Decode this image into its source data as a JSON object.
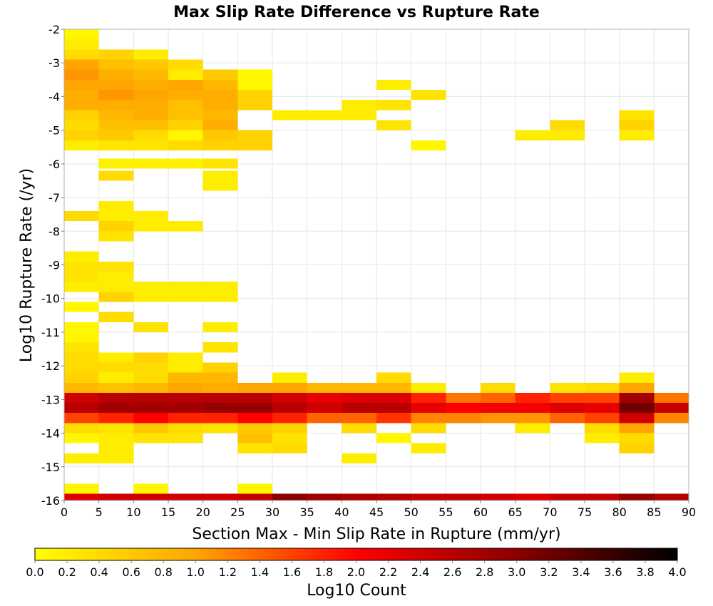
{
  "chart_data": {
    "type": "heatmap",
    "title": "Max Slip Rate Difference vs Rupture Rate",
    "xlabel": "Section Max - Min Slip Rate in Rupture (mm/yr)",
    "ylabel": "Log10 Rupture Rate (/yr)",
    "xlim": [
      0,
      90
    ],
    "ylim": [
      -16,
      -2
    ],
    "x_bin_width": 5,
    "y_bin_height": 0.3,
    "x_ticks": [
      "0",
      "5",
      "10",
      "15",
      "20",
      "25",
      "30",
      "35",
      "40",
      "45",
      "50",
      "55",
      "60",
      "65",
      "70",
      "75",
      "80",
      "85",
      "90"
    ],
    "y_ticks": [
      "-2",
      "-3",
      "-4",
      "-5",
      "-6",
      "-7",
      "-8",
      "-9",
      "-10",
      "-11",
      "-12",
      "-13",
      "-14",
      "-15",
      "-16"
    ],
    "grid": true,
    "colorbar": {
      "label": "Log10 Count",
      "min": 0.0,
      "max": 4.0,
      "ticks": [
        "0.0",
        "0.2",
        "0.4",
        "0.6",
        "0.8",
        "1.0",
        "1.2",
        "1.4",
        "1.6",
        "1.8",
        "2.0",
        "2.2",
        "2.4",
        "2.6",
        "2.8",
        "3.0",
        "3.2",
        "3.4",
        "3.6",
        "3.8",
        "4.0"
      ],
      "colors": [
        "#ffff00",
        "#ffa500",
        "#ff0000",
        "#8b0000",
        "#000000"
      ]
    },
    "cells": [
      [
        0,
        -2.15,
        0.1
      ],
      [
        0,
        -2.45,
        0.2
      ],
      [
        0,
        -2.75,
        0.4
      ],
      [
        0,
        -3.05,
        1.0
      ],
      [
        0,
        -3.35,
        1.1
      ],
      [
        0,
        -3.65,
        1.0
      ],
      [
        0,
        -3.95,
        0.9
      ],
      [
        0,
        -4.25,
        0.9
      ],
      [
        0,
        -4.55,
        0.5
      ],
      [
        0,
        -4.85,
        0.4
      ],
      [
        0,
        -5.15,
        0.5
      ],
      [
        0,
        -5.45,
        0.2
      ],
      [
        0,
        -7.55,
        0.4
      ],
      [
        0,
        -8.75,
        0.2
      ],
      [
        0,
        -9.05,
        0.3
      ],
      [
        0,
        -9.35,
        0.3
      ],
      [
        0,
        -9.65,
        0.2
      ],
      [
        0,
        -10.25,
        0.1
      ],
      [
        0,
        -10.85,
        0.1
      ],
      [
        0,
        -11.15,
        0.1
      ],
      [
        0,
        -11.45,
        0.3
      ],
      [
        0,
        -11.75,
        0.4
      ],
      [
        0,
        -12.05,
        0.4
      ],
      [
        0,
        -12.35,
        0.5
      ],
      [
        0,
        -12.65,
        0.8
      ],
      [
        0,
        -12.95,
        2.4
      ],
      [
        0,
        -13.25,
        2.6
      ],
      [
        0,
        -13.55,
        1.6
      ],
      [
        0,
        -13.85,
        0.4
      ],
      [
        0,
        -14.15,
        0.1
      ],
      [
        0,
        -14.75,
        0.2
      ],
      [
        0,
        -15.65,
        0.1
      ],
      [
        0,
        -15.95,
        2.3
      ],
      [
        5,
        -2.75,
        0.5
      ],
      [
        5,
        -3.05,
        0.7
      ],
      [
        5,
        -3.35,
        0.9
      ],
      [
        5,
        -3.65,
        1.0
      ],
      [
        5,
        -3.95,
        1.1
      ],
      [
        5,
        -4.25,
        0.9
      ],
      [
        5,
        -4.55,
        0.8
      ],
      [
        5,
        -4.85,
        0.7
      ],
      [
        5,
        -5.15,
        0.6
      ],
      [
        5,
        -5.45,
        0.3
      ],
      [
        5,
        -5.99,
        0.15
      ],
      [
        5,
        -6.35,
        0.4
      ],
      [
        5,
        -7.25,
        0.2
      ],
      [
        5,
        -7.55,
        0.2
      ],
      [
        5,
        -7.85,
        0.5
      ],
      [
        5,
        -8.15,
        0.3
      ],
      [
        5,
        -9.05,
        0.3
      ],
      [
        5,
        -9.35,
        0.2
      ],
      [
        5,
        -9.65,
        0.2
      ],
      [
        5,
        -9.95,
        0.5
      ],
      [
        5,
        -10.55,
        0.4
      ],
      [
        5,
        -11.75,
        0.2
      ],
      [
        5,
        -12.05,
        0.4
      ],
      [
        5,
        -12.35,
        0.2
      ],
      [
        5,
        -12.65,
        0.7
      ],
      [
        5,
        -12.95,
        2.6
      ],
      [
        5,
        -13.25,
        2.8
      ],
      [
        5,
        -13.55,
        1.8
      ],
      [
        5,
        -13.85,
        0.3
      ],
      [
        5,
        -14.15,
        0.2
      ],
      [
        5,
        -14.45,
        0.2
      ],
      [
        5,
        -14.75,
        0.2
      ],
      [
        5,
        -15.95,
        2.4
      ],
      [
        10,
        -2.75,
        0.2
      ],
      [
        10,
        -3.05,
        0.6
      ],
      [
        10,
        -3.35,
        0.8
      ],
      [
        10,
        -3.65,
        0.9
      ],
      [
        10,
        -3.95,
        1.0
      ],
      [
        10,
        -4.25,
        0.9
      ],
      [
        10,
        -4.55,
        0.9
      ],
      [
        10,
        -4.85,
        0.7
      ],
      [
        10,
        -5.15,
        0.4
      ],
      [
        10,
        -5.45,
        0.3
      ],
      [
        10,
        -5.99,
        0.15
      ],
      [
        10,
        -7.55,
        0.2
      ],
      [
        10,
        -7.85,
        0.2
      ],
      [
        10,
        -9.65,
        0.2
      ],
      [
        10,
        -9.95,
        0.2
      ],
      [
        10,
        -10.85,
        0.3
      ],
      [
        10,
        -11.75,
        0.5
      ],
      [
        10,
        -12.05,
        0.4
      ],
      [
        10,
        -12.35,
        0.4
      ],
      [
        10,
        -12.65,
        0.8
      ],
      [
        10,
        -12.95,
        2.6
      ],
      [
        10,
        -13.25,
        2.8
      ],
      [
        10,
        -13.55,
        2.0
      ],
      [
        10,
        -13.85,
        0.6
      ],
      [
        10,
        -14.15,
        0.3
      ],
      [
        10,
        -15.65,
        0.1
      ],
      [
        10,
        -15.95,
        2.4
      ],
      [
        15,
        -3.05,
        0.4
      ],
      [
        15,
        -3.35,
        0.2
      ],
      [
        15,
        -3.65,
        1.0
      ],
      [
        15,
        -3.95,
        0.9
      ],
      [
        15,
        -4.25,
        0.7
      ],
      [
        15,
        -4.55,
        0.7
      ],
      [
        15,
        -4.85,
        0.5
      ],
      [
        15,
        -5.15,
        0.1
      ],
      [
        15,
        -5.45,
        0.4
      ],
      [
        15,
        -5.99,
        0.15
      ],
      [
        15,
        -7.85,
        0.2
      ],
      [
        15,
        -9.65,
        0.2
      ],
      [
        15,
        -9.95,
        0.2
      ],
      [
        15,
        -11.75,
        0.2
      ],
      [
        15,
        -12.05,
        0.2
      ],
      [
        15,
        -12.35,
        0.8
      ],
      [
        15,
        -12.65,
        1.0
      ],
      [
        15,
        -12.95,
        2.6
      ],
      [
        15,
        -13.25,
        2.8
      ],
      [
        15,
        -13.55,
        1.8
      ],
      [
        15,
        -13.85,
        0.4
      ],
      [
        15,
        -14.15,
        0.3
      ],
      [
        15,
        -15.95,
        2.4
      ],
      [
        20,
        -3.35,
        0.6
      ],
      [
        20,
        -3.65,
        0.8
      ],
      [
        20,
        -3.95,
        0.9
      ],
      [
        20,
        -4.25,
        0.9
      ],
      [
        20,
        -4.55,
        0.8
      ],
      [
        20,
        -4.85,
        0.9
      ],
      [
        20,
        -5.15,
        0.6
      ],
      [
        20,
        -5.45,
        0.5
      ],
      [
        20,
        -5.99,
        0.3
      ],
      [
        20,
        -6.35,
        0.2
      ],
      [
        20,
        -6.65,
        0.2
      ],
      [
        20,
        -9.65,
        0.2
      ],
      [
        20,
        -9.95,
        0.2
      ],
      [
        20,
        -10.85,
        0.2
      ],
      [
        20,
        -11.45,
        0.3
      ],
      [
        20,
        -12.05,
        0.5
      ],
      [
        20,
        -12.35,
        0.8
      ],
      [
        20,
        -12.65,
        0.9
      ],
      [
        20,
        -12.95,
        2.6
      ],
      [
        20,
        -13.25,
        2.9
      ],
      [
        20,
        -13.55,
        1.8
      ],
      [
        20,
        -13.85,
        0.3
      ],
      [
        20,
        -15.95,
        2.4
      ],
      [
        25,
        -3.35,
        0.1
      ],
      [
        25,
        -3.65,
        0.1
      ],
      [
        25,
        -3.95,
        0.5
      ],
      [
        25,
        -4.25,
        0.5
      ],
      [
        25,
        -5.15,
        0.5
      ],
      [
        25,
        -5.45,
        0.5
      ],
      [
        25,
        -12.65,
        1.0
      ],
      [
        25,
        -12.95,
        2.6
      ],
      [
        25,
        -13.25,
        2.9
      ],
      [
        25,
        -13.55,
        2.0
      ],
      [
        25,
        -13.85,
        0.6
      ],
      [
        25,
        -14.15,
        0.7
      ],
      [
        25,
        -14.45,
        0.3
      ],
      [
        25,
        -15.65,
        0.1
      ],
      [
        25,
        -15.95,
        2.5
      ],
      [
        30,
        -4.55,
        0.2
      ],
      [
        30,
        -12.35,
        0.2
      ],
      [
        30,
        -12.65,
        1.0
      ],
      [
        30,
        -12.95,
        2.4
      ],
      [
        30,
        -13.25,
        2.6
      ],
      [
        30,
        -13.55,
        1.8
      ],
      [
        30,
        -13.85,
        0.5
      ],
      [
        30,
        -14.15,
        0.3
      ],
      [
        30,
        -14.45,
        0.4
      ],
      [
        30,
        -15.95,
        3.0
      ],
      [
        35,
        -4.55,
        0.2
      ],
      [
        35,
        -12.65,
        0.8
      ],
      [
        35,
        -12.95,
        2.2
      ],
      [
        35,
        -13.25,
        2.4
      ],
      [
        35,
        -13.55,
        1.4
      ],
      [
        35,
        -15.95,
        2.8
      ],
      [
        40,
        -4.25,
        0.2
      ],
      [
        40,
        -4.55,
        0.2
      ],
      [
        40,
        -12.65,
        0.8
      ],
      [
        40,
        -12.95,
        2.3
      ],
      [
        40,
        -13.25,
        2.6
      ],
      [
        40,
        -13.55,
        1.4
      ],
      [
        40,
        -13.85,
        0.4
      ],
      [
        40,
        -14.75,
        0.2
      ],
      [
        40,
        -15.95,
        2.7
      ],
      [
        45,
        -3.65,
        0.2
      ],
      [
        45,
        -4.25,
        0.3
      ],
      [
        45,
        -4.85,
        0.3
      ],
      [
        45,
        -12.35,
        0.4
      ],
      [
        45,
        -12.65,
        0.8
      ],
      [
        45,
        -12.95,
        2.3
      ],
      [
        45,
        -13.25,
        2.6
      ],
      [
        45,
        -13.55,
        1.7
      ],
      [
        45,
        -14.15,
        0.1
      ],
      [
        45,
        -15.95,
        2.6
      ],
      [
        50,
        -3.95,
        0.3
      ],
      [
        50,
        -5.45,
        0.1
      ],
      [
        50,
        -12.65,
        0.2
      ],
      [
        50,
        -12.95,
        1.8
      ],
      [
        50,
        -13.25,
        2.2
      ],
      [
        50,
        -13.55,
        1.2
      ],
      [
        50,
        -13.85,
        0.4
      ],
      [
        50,
        -14.45,
        0.2
      ],
      [
        50,
        -15.95,
        2.5
      ],
      [
        55,
        -12.95,
        1.3
      ],
      [
        55,
        -13.25,
        2.0
      ],
      [
        55,
        -13.55,
        1.2
      ],
      [
        55,
        -15.95,
        2.5
      ],
      [
        60,
        -12.65,
        0.4
      ],
      [
        60,
        -12.95,
        1.4
      ],
      [
        60,
        -13.25,
        2.1
      ],
      [
        60,
        -13.55,
        1.1
      ],
      [
        60,
        -15.95,
        2.4
      ],
      [
        65,
        -5.15,
        0.2
      ],
      [
        65,
        -12.95,
        1.8
      ],
      [
        65,
        -13.25,
        2.1
      ],
      [
        65,
        -13.55,
        1.1
      ],
      [
        65,
        -13.85,
        0.2
      ],
      [
        65,
        -15.95,
        2.3
      ],
      [
        70,
        -4.85,
        0.4
      ],
      [
        70,
        -5.15,
        0.2
      ],
      [
        70,
        -12.65,
        0.3
      ],
      [
        70,
        -12.95,
        1.6
      ],
      [
        70,
        -13.25,
        2.3
      ],
      [
        70,
        -13.55,
        1.4
      ],
      [
        70,
        -15.95,
        2.5
      ],
      [
        75,
        -12.65,
        0.4
      ],
      [
        75,
        -12.95,
        1.6
      ],
      [
        75,
        -13.25,
        2.2
      ],
      [
        75,
        -13.55,
        1.6
      ],
      [
        75,
        -13.85,
        0.4
      ],
      [
        75,
        -14.15,
        0.2
      ],
      [
        75,
        -15.95,
        2.5
      ],
      [
        80,
        -4.55,
        0.3
      ],
      [
        80,
        -4.85,
        0.5
      ],
      [
        80,
        -5.15,
        0.2
      ],
      [
        80,
        -12.35,
        0.2
      ],
      [
        80,
        -12.65,
        1.0
      ],
      [
        80,
        -12.95,
        2.8
      ],
      [
        80,
        -13.25,
        3.2
      ],
      [
        80,
        -13.55,
        2.4
      ],
      [
        80,
        -13.85,
        1.0
      ],
      [
        80,
        -14.15,
        0.4
      ],
      [
        80,
        -14.45,
        0.5
      ],
      [
        80,
        -15.95,
        2.9
      ],
      [
        85,
        -12.95,
        1.3
      ],
      [
        85,
        -13.25,
        2.5
      ],
      [
        85,
        -13.55,
        1.2
      ],
      [
        85,
        -15.95,
        2.6
      ]
    ]
  }
}
